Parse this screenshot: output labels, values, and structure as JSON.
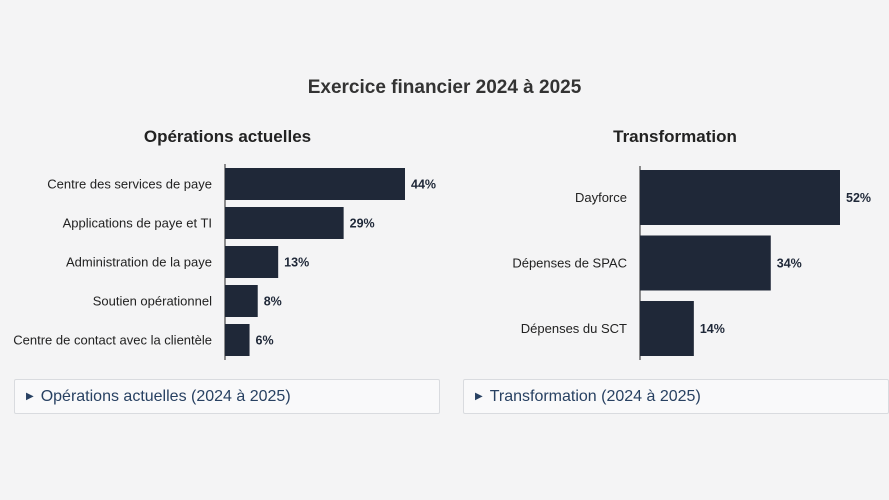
{
  "page_title": "Exercice financier 2024 à 2025",
  "colors": {
    "bar": "#1f2838",
    "accent_link": "#284162",
    "background": "#f4f4f5"
  },
  "chart_data": [
    {
      "type": "bar",
      "orientation": "horizontal",
      "title": "Opérations actuelles",
      "categories": [
        "Centre des services de paye",
        "Applications de paye et TI",
        "Administration de la paye",
        "Soutien opérationnel",
        "Centre de contact avec la clientèle"
      ],
      "values": [
        44,
        29,
        13,
        8,
        6
      ],
      "value_labels": [
        "44%",
        "29%",
        "13%",
        "8%",
        "6%"
      ],
      "unit": "%",
      "xlim": [
        0,
        44
      ],
      "grid": false
    },
    {
      "type": "bar",
      "orientation": "horizontal",
      "title": "Transformation",
      "categories": [
        "Dayforce",
        "Dépenses de SPAC",
        "Dépenses du SCT"
      ],
      "values": [
        52,
        34,
        14
      ],
      "value_labels": [
        "52%",
        "34%",
        "14%"
      ],
      "unit": "%",
      "xlim": [
        0,
        52
      ],
      "grid": false
    }
  ],
  "details": [
    {
      "label": "Opérations actuelles (2024 à 2025)",
      "icon": "caret-right-icon"
    },
    {
      "label": "Transformation (2024 à 2025)",
      "icon": "caret-right-icon"
    }
  ]
}
